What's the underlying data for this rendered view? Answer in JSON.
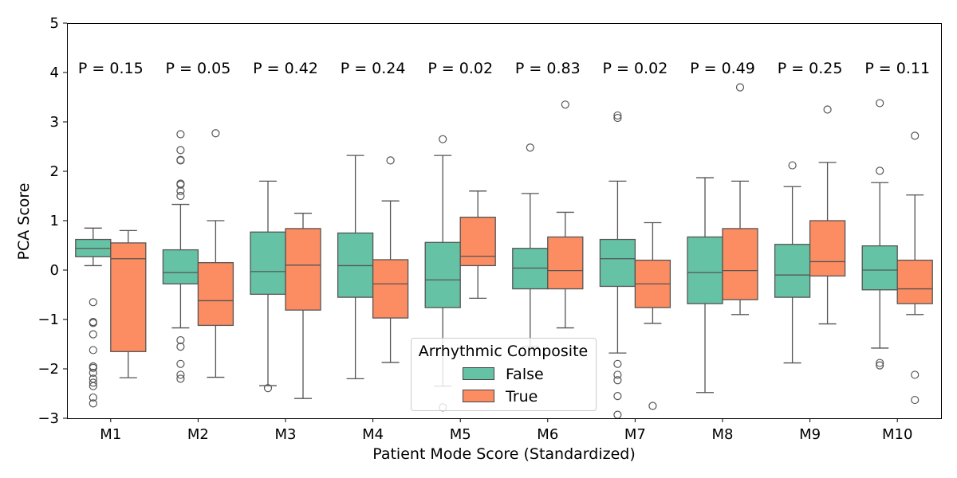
{
  "chart_data": {
    "type": "box",
    "title": "",
    "xlabel": "Patient Mode Score (Standardized)",
    "ylabel": "PCA Score",
    "ylim": [
      -3,
      5
    ],
    "yticks": [
      -3,
      -2,
      -1,
      0,
      1,
      2,
      3,
      4,
      5
    ],
    "grid": false,
    "categories": [
      "M1",
      "M2",
      "M3",
      "M4",
      "M5",
      "M6",
      "M7",
      "M8",
      "M9",
      "M10"
    ],
    "p_values": [
      "P = 0.15",
      "P = 0.05",
      "P = 0.42",
      "P = 0.24",
      "P = 0.02",
      "P = 0.83",
      "P = 0.02",
      "P = 0.49",
      "P = 0.25",
      "P = 0.11"
    ],
    "legend": {
      "title": "Arrhythmic Composite",
      "placement": "lower-center"
    },
    "series": [
      {
        "name": "False",
        "color": "#66c2a5",
        "boxes": [
          {
            "q1": 0.27,
            "median": 0.44,
            "q3": 0.62,
            "whislo": 0.09,
            "whishi": 0.85,
            "fliers": [
              -0.65,
              -1.05,
              -1.07,
              -1.3,
              -1.62,
              -1.95,
              -1.98,
              -2.08,
              -2.2,
              -2.28,
              -2.35,
              -2.58,
              -2.7
            ]
          },
          {
            "q1": -0.28,
            "median": -0.05,
            "q3": 0.41,
            "whislo": -1.17,
            "whishi": 1.33,
            "fliers": [
              1.5,
              1.6,
              1.73,
              1.75,
              2.22,
              2.23,
              2.43,
              2.75,
              -1.42,
              -1.55,
              -1.9,
              -2.12,
              -2.2
            ]
          },
          {
            "q1": -0.49,
            "median": -0.03,
            "q3": 0.77,
            "whislo": -2.34,
            "whishi": 1.8,
            "fliers": [
              -2.39
            ]
          },
          {
            "q1": -0.55,
            "median": 0.09,
            "q3": 0.75,
            "whislo": -2.2,
            "whishi": 2.32,
            "fliers": []
          },
          {
            "q1": -0.76,
            "median": -0.2,
            "q3": 0.56,
            "whislo": -2.35,
            "whishi": 2.32,
            "fliers": [
              2.65,
              -2.78
            ]
          },
          {
            "q1": -0.38,
            "median": 0.04,
            "q3": 0.44,
            "whislo": -1.55,
            "whishi": 1.55,
            "fliers": [
              2.48
            ]
          },
          {
            "q1": -0.33,
            "median": 0.23,
            "q3": 0.62,
            "whislo": -1.68,
            "whishi": 1.8,
            "fliers": [
              3.08,
              3.13,
              -1.9,
              -2.12,
              -2.23,
              -2.55,
              -2.93
            ]
          },
          {
            "q1": -0.68,
            "median": -0.05,
            "q3": 0.67,
            "whislo": -2.48,
            "whishi": 1.87,
            "fliers": []
          },
          {
            "q1": -0.55,
            "median": -0.1,
            "q3": 0.52,
            "whislo": -1.88,
            "whishi": 1.69,
            "fliers": [
              2.12
            ]
          },
          {
            "q1": -0.4,
            "median": 0.0,
            "q3": 0.49,
            "whislo": -1.58,
            "whishi": 1.77,
            "fliers": [
              2.01,
              3.38,
              -1.88,
              -1.93
            ]
          }
        ]
      },
      {
        "name": "True",
        "color": "#fc8d62",
        "boxes": [
          {
            "q1": -1.65,
            "median": 0.23,
            "q3": 0.55,
            "whislo": -2.18,
            "whishi": 0.8,
            "fliers": []
          },
          {
            "q1": -1.12,
            "median": -0.62,
            "q3": 0.15,
            "whislo": -2.17,
            "whishi": 1.0,
            "fliers": [
              2.77
            ]
          },
          {
            "q1": -0.81,
            "median": 0.1,
            "q3": 0.84,
            "whislo": -2.6,
            "whishi": 1.15,
            "fliers": []
          },
          {
            "q1": -0.97,
            "median": -0.28,
            "q3": 0.21,
            "whislo": -1.87,
            "whishi": 1.4,
            "fliers": [
              2.22
            ]
          },
          {
            "q1": 0.09,
            "median": 0.28,
            "q3": 1.07,
            "whislo": -0.57,
            "whishi": 1.6,
            "fliers": []
          },
          {
            "q1": -0.38,
            "median": -0.01,
            "q3": 0.67,
            "whislo": -1.17,
            "whishi": 1.17,
            "fliers": [
              3.35
            ]
          },
          {
            "q1": -0.76,
            "median": -0.28,
            "q3": 0.2,
            "whislo": -1.08,
            "whishi": 0.96,
            "fliers": [
              -2.75
            ]
          },
          {
            "q1": -0.6,
            "median": -0.01,
            "q3": 0.84,
            "whislo": -0.9,
            "whishi": 1.8,
            "fliers": [
              3.7
            ]
          },
          {
            "q1": -0.12,
            "median": 0.17,
            "q3": 1.0,
            "whislo": -1.09,
            "whishi": 2.18,
            "fliers": [
              3.25
            ]
          },
          {
            "q1": -0.68,
            "median": -0.38,
            "q3": 0.2,
            "whislo": -0.9,
            "whishi": 1.52,
            "fliers": [
              2.72,
              -2.12,
              -2.63
            ]
          }
        ]
      }
    ]
  }
}
